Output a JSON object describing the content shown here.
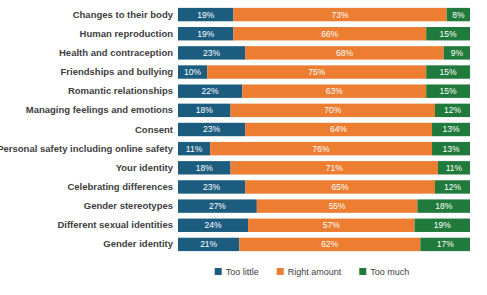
{
  "chart_data": {
    "type": "bar",
    "orientation": "horizontal",
    "stacked": true,
    "data_labels": true,
    "tick_labels": "y",
    "legend": "bottom",
    "categories": [
      "Changes to their body",
      "Human reproduction",
      "Health and contraception",
      "Friendships and bullying",
      "Romantic relationships",
      "Managing feelings and emotions",
      "Consent",
      "Personal safety including online safety",
      "Your identity",
      "Celebrating differences",
      "Gender stereotypes",
      "Different sexual identities",
      "Gender identity"
    ],
    "series": [
      {
        "name": "Too little",
        "color": "#1c5d7f",
        "values": [
          19,
          19,
          23,
          10,
          22,
          18,
          23,
          11,
          18,
          23,
          27,
          24,
          21
        ],
        "value_labels": [
          "19%",
          "19%",
          "23%",
          "10%",
          "22%",
          "18%",
          "23%",
          "11%",
          "18%",
          "23%",
          "27%",
          "24%",
          "21%"
        ]
      },
      {
        "name": "Right amount",
        "color": "#ec7d31",
        "values": [
          73,
          66,
          68,
          75,
          63,
          70,
          64,
          76,
          71,
          65,
          55,
          57,
          62
        ],
        "value_labels": [
          "73%",
          "66%",
          "68%",
          "75%",
          "63%",
          "70%",
          "64%",
          "76%",
          "71%",
          "65%",
          "55%",
          "57%",
          "62%"
        ]
      },
      {
        "name": "Too much",
        "color": "#1f7a3b",
        "values": [
          8,
          15,
          9,
          15,
          15,
          12,
          13,
          13,
          11,
          12,
          18,
          19,
          17
        ],
        "value_labels": [
          "8%",
          "15%",
          "9%",
          "15%",
          "15%",
          "12%",
          "13%",
          "13%",
          "11%",
          "12%",
          "18%",
          "19%",
          "17%"
        ]
      }
    ]
  }
}
